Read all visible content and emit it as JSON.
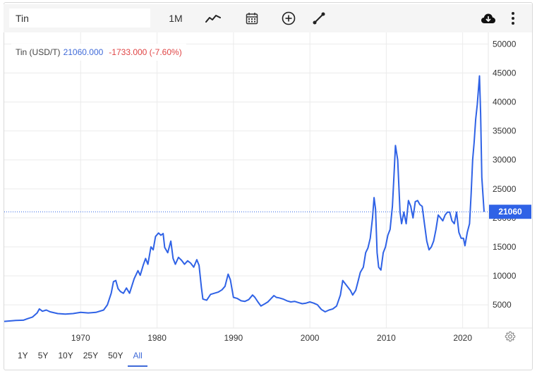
{
  "search": {
    "value": "Tin"
  },
  "toolbar": {
    "interval_label": "1M",
    "indicator_icon": "trend-line-icon",
    "calendar_icon": "calendar-icon",
    "compare_icon": "plus-circle-icon",
    "draw_icon": "draw-line-icon",
    "download_icon": "cloud-download-icon",
    "more_icon": "more-vertical-icon"
  },
  "quote": {
    "name": "Tin (USD/T)",
    "price": "21060.000",
    "change": "-1733.000 (-7.60%)"
  },
  "current_price_label": "21060",
  "ranges": [
    {
      "label": "1Y",
      "active": false
    },
    {
      "label": "5Y",
      "active": false
    },
    {
      "label": "10Y",
      "active": false
    },
    {
      "label": "25Y",
      "active": false
    },
    {
      "label": "50Y",
      "active": false
    },
    {
      "label": "All",
      "active": true
    }
  ],
  "colors": {
    "line": "#2f62e6",
    "price_marker": "#2f62e6",
    "negative": "#e04444",
    "grid": "#ebebeb"
  },
  "chart_data": {
    "type": "line",
    "title": "",
    "xlabel": "",
    "ylabel": "",
    "xlim": [
      1960,
      2022.8
    ],
    "ylim": [
      1000,
      52000
    ],
    "y_ticks": [
      5000,
      10000,
      15000,
      20000,
      25000,
      30000,
      35000,
      40000,
      45000,
      50000
    ],
    "x_ticks": [
      1970,
      1980,
      1990,
      2000,
      2010,
      2020
    ],
    "current_value": 21060,
    "grid": true,
    "y_axis_position": "right",
    "series": [
      {
        "name": "",
        "points": [
          [
            1960.0,
            2150
          ],
          [
            1961.5,
            2300
          ],
          [
            1962.5,
            2350
          ],
          [
            1963.0,
            2600
          ],
          [
            1963.7,
            2900
          ],
          [
            1964.3,
            3600
          ],
          [
            1964.6,
            4300
          ],
          [
            1965.0,
            3900
          ],
          [
            1965.5,
            4100
          ],
          [
            1966.0,
            3800
          ],
          [
            1967.0,
            3500
          ],
          [
            1968.0,
            3400
          ],
          [
            1969.0,
            3500
          ],
          [
            1970.0,
            3700
          ],
          [
            1971.0,
            3600
          ],
          [
            1972.0,
            3700
          ],
          [
            1973.0,
            4100
          ],
          [
            1973.5,
            5000
          ],
          [
            1974.0,
            7000
          ],
          [
            1974.3,
            9000
          ],
          [
            1974.6,
            9200
          ],
          [
            1974.9,
            7800
          ],
          [
            1975.2,
            7300
          ],
          [
            1975.6,
            7000
          ],
          [
            1976.0,
            7900
          ],
          [
            1976.4,
            7000
          ],
          [
            1977.0,
            9500
          ],
          [
            1977.5,
            10900
          ],
          [
            1977.8,
            10100
          ],
          [
            1978.2,
            11900
          ],
          [
            1978.5,
            13000
          ],
          [
            1978.8,
            12000
          ],
          [
            1979.2,
            15000
          ],
          [
            1979.5,
            14500
          ],
          [
            1979.8,
            16800
          ],
          [
            1980.2,
            17400
          ],
          [
            1980.5,
            17000
          ],
          [
            1980.8,
            17300
          ],
          [
            1981.0,
            14900
          ],
          [
            1981.4,
            14000
          ],
          [
            1981.8,
            16000
          ],
          [
            1982.1,
            13000
          ],
          [
            1982.4,
            12000
          ],
          [
            1982.8,
            13200
          ],
          [
            1983.2,
            12700
          ],
          [
            1983.6,
            12000
          ],
          [
            1984.0,
            12600
          ],
          [
            1984.4,
            12200
          ],
          [
            1984.8,
            11500
          ],
          [
            1985.2,
            12800
          ],
          [
            1985.5,
            11800
          ],
          [
            1985.8,
            8000
          ],
          [
            1986.0,
            6000
          ],
          [
            1986.5,
            5800
          ],
          [
            1987.0,
            6800
          ],
          [
            1987.5,
            7000
          ],
          [
            1988.0,
            7200
          ],
          [
            1988.5,
            7600
          ],
          [
            1988.9,
            8200
          ],
          [
            1989.3,
            10300
          ],
          [
            1989.6,
            9300
          ],
          [
            1990.0,
            6300
          ],
          [
            1990.5,
            6100
          ],
          [
            1991.0,
            5700
          ],
          [
            1991.5,
            5600
          ],
          [
            1992.0,
            5900
          ],
          [
            1992.5,
            6700
          ],
          [
            1992.8,
            6300
          ],
          [
            1993.2,
            5500
          ],
          [
            1993.6,
            4800
          ],
          [
            1994.0,
            5100
          ],
          [
            1994.5,
            5500
          ],
          [
            1995.0,
            6200
          ],
          [
            1995.3,
            6600
          ],
          [
            1995.6,
            6300
          ],
          [
            1996.0,
            6200
          ],
          [
            1996.5,
            6000
          ],
          [
            1997.0,
            5700
          ],
          [
            1997.5,
            5500
          ],
          [
            1998.0,
            5600
          ],
          [
            1998.5,
            5400
          ],
          [
            1999.0,
            5200
          ],
          [
            1999.5,
            5300
          ],
          [
            2000.0,
            5500
          ],
          [
            2000.5,
            5300
          ],
          [
            2001.0,
            5000
          ],
          [
            2001.5,
            4200
          ],
          [
            2002.0,
            3800
          ],
          [
            2002.5,
            4100
          ],
          [
            2003.0,
            4300
          ],
          [
            2003.5,
            4800
          ],
          [
            2004.0,
            6700
          ],
          [
            2004.3,
            9200
          ],
          [
            2004.6,
            8700
          ],
          [
            2005.0,
            8000
          ],
          [
            2005.3,
            7500
          ],
          [
            2005.6,
            6700
          ],
          [
            2006.0,
            7500
          ],
          [
            2006.3,
            9000
          ],
          [
            2006.6,
            10600
          ],
          [
            2007.0,
            11500
          ],
          [
            2007.3,
            14000
          ],
          [
            2007.6,
            14800
          ],
          [
            2007.9,
            16500
          ],
          [
            2008.2,
            20000
          ],
          [
            2008.4,
            23500
          ],
          [
            2008.6,
            21500
          ],
          [
            2008.8,
            14000
          ],
          [
            2009.0,
            11500
          ],
          [
            2009.3,
            11000
          ],
          [
            2009.6,
            14000
          ],
          [
            2009.9,
            15000
          ],
          [
            2010.2,
            17000
          ],
          [
            2010.5,
            18000
          ],
          [
            2010.8,
            22000
          ],
          [
            2011.0,
            27000
          ],
          [
            2011.2,
            32500
          ],
          [
            2011.5,
            30000
          ],
          [
            2011.8,
            21000
          ],
          [
            2012.0,
            19000
          ],
          [
            2012.3,
            21000
          ],
          [
            2012.6,
            19000
          ],
          [
            2012.9,
            23000
          ],
          [
            2013.2,
            22000
          ],
          [
            2013.5,
            20000
          ],
          [
            2013.8,
            22800
          ],
          [
            2014.1,
            23000
          ],
          [
            2014.4,
            22300
          ],
          [
            2014.7,
            22000
          ],
          [
            2015.0,
            19000
          ],
          [
            2015.3,
            16000
          ],
          [
            2015.6,
            14500
          ],
          [
            2015.9,
            15000
          ],
          [
            2016.2,
            16000
          ],
          [
            2016.5,
            18000
          ],
          [
            2016.8,
            20500
          ],
          [
            2017.1,
            20000
          ],
          [
            2017.4,
            19500
          ],
          [
            2017.7,
            20500
          ],
          [
            2018.0,
            21000
          ],
          [
            2018.3,
            21000
          ],
          [
            2018.6,
            19500
          ],
          [
            2018.9,
            19000
          ],
          [
            2019.2,
            21000
          ],
          [
            2019.5,
            17500
          ],
          [
            2019.8,
            16500
          ],
          [
            2020.1,
            16500
          ],
          [
            2020.3,
            15200
          ],
          [
            2020.6,
            17500
          ],
          [
            2020.9,
            19000
          ],
          [
            2021.1,
            24000
          ],
          [
            2021.3,
            30000
          ],
          [
            2021.5,
            33000
          ],
          [
            2021.7,
            37000
          ],
          [
            2021.9,
            39500
          ],
          [
            2022.05,
            42000
          ],
          [
            2022.2,
            44500
          ],
          [
            2022.35,
            38000
          ],
          [
            2022.5,
            27000
          ],
          [
            2022.65,
            24000
          ],
          [
            2022.8,
            21060
          ]
        ]
      }
    ]
  }
}
